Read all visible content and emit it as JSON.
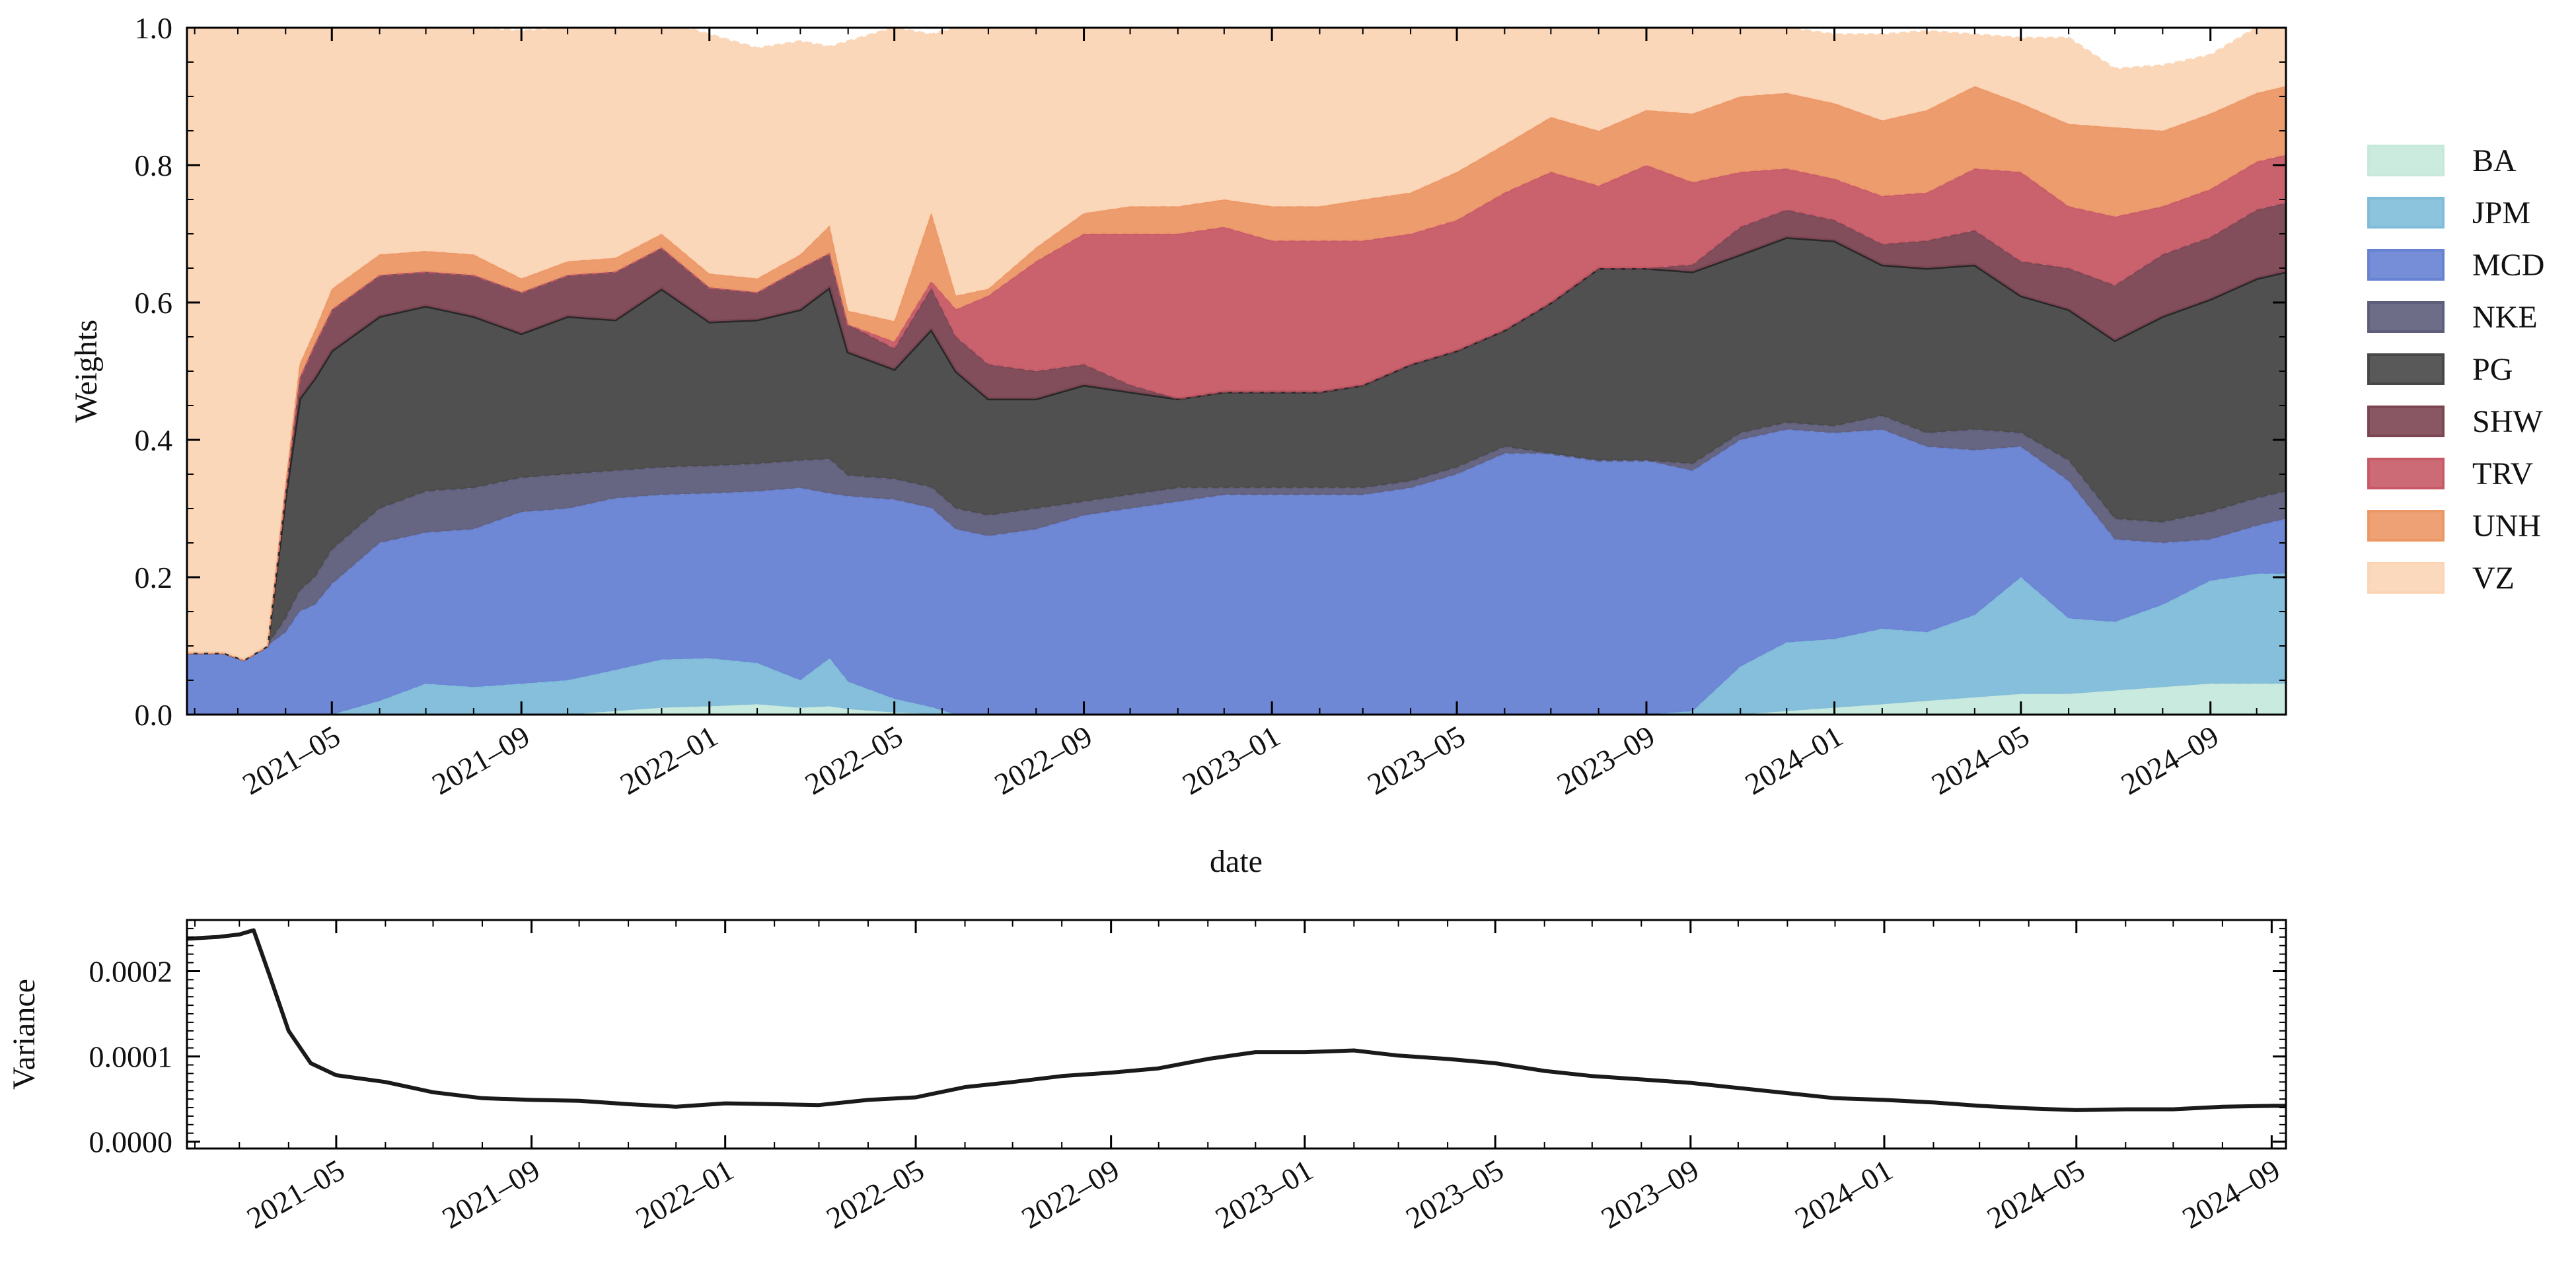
{
  "chart_data": [
    {
      "type": "area",
      "stacked": true,
      "xlabel": "date",
      "ylabel": "Weights",
      "ylim": [
        0.0,
        1.0
      ],
      "xlim": [
        "2021-01-27",
        "2024-10-20"
      ],
      "yticks": [
        0.0,
        0.2,
        0.4,
        0.6,
        0.8,
        1.0
      ],
      "ytick_labels": [
        "0.0",
        "0.2",
        "0.4",
        "0.6",
        "0.8",
        "1.0"
      ],
      "xticks": [
        "2021-05-01",
        "2021-09-01",
        "2022-01-01",
        "2022-05-01",
        "2022-09-01",
        "2023-01-01",
        "2023-05-01",
        "2023-09-01",
        "2024-01-01",
        "2024-05-01",
        "2024-09-01"
      ],
      "xtick_labels": [
        "2021–05",
        "2021–09",
        "2022–01",
        "2022–05",
        "2022–09",
        "2023–01",
        "2023–05",
        "2023–09",
        "2024–01",
        "2024–05",
        "2024–09"
      ],
      "legend_position": "right",
      "x": [
        "2021-01-27",
        "2021-02-20",
        "2021-03-05",
        "2021-03-20",
        "2021-04-01",
        "2021-04-10",
        "2021-04-20",
        "2021-05-01",
        "2021-06-01",
        "2021-07-01",
        "2021-08-01",
        "2021-09-01",
        "2021-10-01",
        "2021-11-01",
        "2021-12-01",
        "2022-01-01",
        "2022-02-01",
        "2022-03-01",
        "2022-03-20",
        "2022-04-01",
        "2022-05-01",
        "2022-05-25",
        "2022-06-10",
        "2022-07-01",
        "2022-08-01",
        "2022-09-01",
        "2022-10-01",
        "2022-11-01",
        "2022-12-01",
        "2023-01-01",
        "2023-02-01",
        "2023-03-01",
        "2023-04-01",
        "2023-05-01",
        "2023-06-01",
        "2023-07-01",
        "2023-08-01",
        "2023-09-01",
        "2023-10-01",
        "2023-11-01",
        "2023-12-01",
        "2024-01-01",
        "2024-02-01",
        "2024-03-01",
        "2024-04-01",
        "2024-05-01",
        "2024-06-01",
        "2024-07-01",
        "2024-08-01",
        "2024-09-01",
        "2024-10-01",
        "2024-10-20"
      ],
      "series": [
        {
          "name": "BA",
          "color": "#c6e9dc",
          "values": [
            0,
            0,
            0,
            0,
            0,
            0,
            0,
            0,
            0,
            0,
            0,
            0,
            0,
            0.005,
            0.01,
            0.012,
            0.015,
            0.01,
            0.012,
            0.008,
            0.003,
            0.001,
            0,
            0,
            0,
            0,
            0,
            0,
            0,
            0,
            0,
            0,
            0,
            0,
            0,
            0,
            0,
            0,
            0,
            0,
            0.005,
            0.01,
            0.015,
            0.02,
            0.025,
            0.03,
            0.03,
            0.035,
            0.04,
            0.045,
            0.045,
            0.045
          ]
        },
        {
          "name": "JPM",
          "color": "#7fbcd9",
          "values": [
            0,
            0,
            0,
            0,
            0,
            0,
            0,
            0,
            0.02,
            0.045,
            0.04,
            0.045,
            0.05,
            0.06,
            0.07,
            0.07,
            0.06,
            0.04,
            0.07,
            0.04,
            0.02,
            0.01,
            0,
            0,
            0,
            0,
            0,
            0,
            0,
            0,
            0,
            0,
            0,
            0,
            0,
            0,
            0,
            0,
            0.005,
            0.07,
            0.1,
            0.1,
            0.11,
            0.1,
            0.12,
            0.17,
            0.11,
            0.1,
            0.12,
            0.15,
            0.16,
            0.16
          ]
        },
        {
          "name": "MCD",
          "color": "#6782d3",
          "values": [
            0.09,
            0.09,
            0.08,
            0.1,
            0.12,
            0.15,
            0.16,
            0.19,
            0.23,
            0.22,
            0.23,
            0.25,
            0.25,
            0.25,
            0.24,
            0.24,
            0.25,
            0.28,
            0.24,
            0.27,
            0.29,
            0.29,
            0.27,
            0.26,
            0.27,
            0.29,
            0.3,
            0.31,
            0.32,
            0.32,
            0.32,
            0.32,
            0.33,
            0.35,
            0.38,
            0.38,
            0.37,
            0.37,
            0.35,
            0.33,
            0.31,
            0.3,
            0.29,
            0.27,
            0.24,
            0.19,
            0.2,
            0.12,
            0.09,
            0.06,
            0.07,
            0.08
          ]
        },
        {
          "name": "NKE",
          "color": "#5e5d7b",
          "values": [
            0,
            0,
            0,
            0,
            0.02,
            0.03,
            0.04,
            0.05,
            0.05,
            0.06,
            0.06,
            0.05,
            0.05,
            0.04,
            0.04,
            0.04,
            0.04,
            0.04,
            0.05,
            0.03,
            0.03,
            0.03,
            0.03,
            0.03,
            0.03,
            0.02,
            0.02,
            0.02,
            0.01,
            0.01,
            0.01,
            0.01,
            0.01,
            0.01,
            0.01,
            0,
            0,
            0,
            0.01,
            0.01,
            0.01,
            0.01,
            0.02,
            0.02,
            0.03,
            0.02,
            0.03,
            0.03,
            0.03,
            0.04,
            0.04,
            0.04
          ]
        },
        {
          "name": "PG",
          "color": "#474747",
          "values": [
            0,
            0,
            0,
            0,
            0.18,
            0.28,
            0.29,
            0.29,
            0.28,
            0.27,
            0.25,
            0.21,
            0.23,
            0.22,
            0.26,
            0.21,
            0.21,
            0.22,
            0.25,
            0.18,
            0.16,
            0.23,
            0.2,
            0.17,
            0.16,
            0.17,
            0.15,
            0.13,
            0.14,
            0.14,
            0.14,
            0.15,
            0.17,
            0.17,
            0.17,
            0.22,
            0.28,
            0.28,
            0.28,
            0.26,
            0.27,
            0.27,
            0.22,
            0.24,
            0.24,
            0.2,
            0.22,
            0.26,
            0.3,
            0.31,
            0.32,
            0.32
          ]
        },
        {
          "name": "SHW",
          "color": "#7c4552",
          "values": [
            0,
            0,
            0,
            0,
            0.01,
            0.03,
            0.05,
            0.06,
            0.06,
            0.05,
            0.06,
            0.06,
            0.06,
            0.07,
            0.06,
            0.05,
            0.04,
            0.06,
            0.05,
            0.04,
            0.03,
            0.06,
            0.05,
            0.05,
            0.04,
            0.03,
            0.01,
            0,
            0,
            0,
            0,
            0,
            0,
            0,
            0,
            0,
            0,
            0,
            0.01,
            0.04,
            0.04,
            0.03,
            0.03,
            0.04,
            0.05,
            0.05,
            0.06,
            0.08,
            0.09,
            0.09,
            0.1,
            0.1
          ]
        },
        {
          "name": "TRV",
          "color": "#c75a66",
          "values": [
            0,
            0,
            0,
            0,
            0,
            0,
            0,
            0,
            0,
            0,
            0,
            0,
            0,
            0,
            0,
            0,
            0,
            0,
            0,
            0,
            0.01,
            0.01,
            0.04,
            0.1,
            0.16,
            0.19,
            0.22,
            0.24,
            0.24,
            0.22,
            0.22,
            0.21,
            0.19,
            0.19,
            0.2,
            0.19,
            0.12,
            0.15,
            0.12,
            0.08,
            0.06,
            0.06,
            0.07,
            0.07,
            0.09,
            0.13,
            0.09,
            0.1,
            0.07,
            0.07,
            0.07,
            0.07
          ]
        },
        {
          "name": "UNH",
          "color": "#ec9766",
          "values": [
            0,
            0,
            0,
            0,
            0.01,
            0.02,
            0.02,
            0.03,
            0.03,
            0.03,
            0.03,
            0.02,
            0.02,
            0.02,
            0.02,
            0.02,
            0.02,
            0.02,
            0.04,
            0.02,
            0.03,
            0.1,
            0.02,
            0.01,
            0.02,
            0.03,
            0.04,
            0.04,
            0.04,
            0.05,
            0.05,
            0.06,
            0.06,
            0.07,
            0.07,
            0.08,
            0.08,
            0.08,
            0.1,
            0.11,
            0.11,
            0.11,
            0.11,
            0.12,
            0.12,
            0.1,
            0.12,
            0.13,
            0.11,
            0.11,
            0.1,
            0.1
          ]
        },
        {
          "name": "VZ",
          "color": "#fbd5b5",
          "values": [
            0.91,
            0.91,
            0.92,
            0.9,
            0.66,
            0.49,
            0.44,
            0.38,
            0.33,
            0.325,
            0.33,
            0.36,
            0.34,
            0.335,
            0.31,
            0.348,
            0.335,
            0.31,
            0.26,
            0.392,
            0.427,
            0.259,
            0.39,
            0.38,
            0.32,
            0.27,
            0.26,
            0.26,
            0.25,
            0.26,
            0.26,
            0.25,
            0.24,
            0.21,
            0.17,
            0.13,
            0.15,
            0.12,
            0.125,
            0.1,
            0.095,
            0.1,
            0.125,
            0.115,
            0.075,
            0.095,
            0.125,
            0.085,
            0.095,
            0.085,
            0.095,
            0.095
          ]
        }
      ]
    },
    {
      "type": "line",
      "xlabel": "",
      "ylabel": "Variance",
      "ylim": [
        -8e-06,
        0.00026
      ],
      "xlim": [
        "2021-01-27",
        "2024-09-10"
      ],
      "yticks": [
        0.0,
        0.0001,
        0.0002
      ],
      "ytick_labels": [
        "0.0000",
        "0.0001",
        "0.0002"
      ],
      "xticks": [
        "2021-05-01",
        "2021-09-01",
        "2022-01-01",
        "2022-05-01",
        "2022-09-01",
        "2023-01-01",
        "2023-05-01",
        "2023-09-01",
        "2024-01-01",
        "2024-05-01",
        "2024-09-01"
      ],
      "xtick_labels": [
        "2021–05",
        "2021–09",
        "2022–01",
        "2022–05",
        "2022–09",
        "2023–01",
        "2023–05",
        "2023–09",
        "2024–01",
        "2024–05",
        "2024–09"
      ],
      "line_color": "#1a1a1a",
      "x": [
        "2021-01-27",
        "2021-02-15",
        "2021-03-01",
        "2021-03-10",
        "2021-03-20",
        "2021-04-01",
        "2021-04-15",
        "2021-05-01",
        "2021-06-01",
        "2021-07-01",
        "2021-08-01",
        "2021-09-01",
        "2021-10-01",
        "2021-11-01",
        "2021-12-01",
        "2022-01-01",
        "2022-02-01",
        "2022-03-01",
        "2022-04-01",
        "2022-05-01",
        "2022-06-01",
        "2022-07-01",
        "2022-08-01",
        "2022-09-01",
        "2022-10-01",
        "2022-11-01",
        "2022-12-01",
        "2023-01-01",
        "2023-02-01",
        "2023-03-01",
        "2023-04-01",
        "2023-05-01",
        "2023-06-01",
        "2023-07-01",
        "2023-08-01",
        "2023-09-01",
        "2023-10-01",
        "2023-11-01",
        "2023-12-01",
        "2024-01-01",
        "2024-02-01",
        "2024-03-01",
        "2024-04-01",
        "2024-05-01",
        "2024-06-01",
        "2024-07-01",
        "2024-08-01",
        "2024-09-01",
        "2024-09-10"
      ],
      "values": [
        0.000238,
        0.00024,
        0.000243,
        0.000248,
        0.000195,
        0.00013,
        9.2e-05,
        7.8e-05,
        7e-05,
        5.8e-05,
        5.1e-05,
        4.9e-05,
        4.8e-05,
        4.4e-05,
        4.1e-05,
        4.5e-05,
        4.4e-05,
        4.3e-05,
        4.9e-05,
        5.2e-05,
        6.4e-05,
        7e-05,
        7.7e-05,
        8.1e-05,
        8.6e-05,
        9.7e-05,
        0.000105,
        0.000105,
        0.000107,
        0.000101,
        9.7e-05,
        9.2e-05,
        8.3e-05,
        7.7e-05,
        7.3e-05,
        6.9e-05,
        6.3e-05,
        5.7e-05,
        5.1e-05,
        4.9e-05,
        4.6e-05,
        4.2e-05,
        3.9e-05,
        3.7e-05,
        3.8e-05,
        3.8e-05,
        4.1e-05,
        4.2e-05,
        4.2e-05
      ]
    }
  ]
}
